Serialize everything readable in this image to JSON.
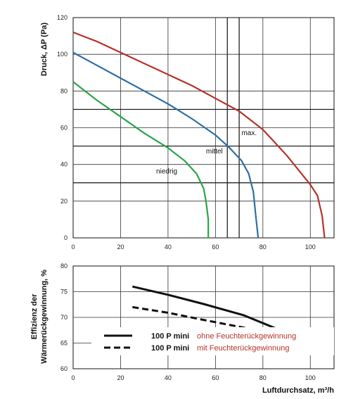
{
  "chart_data": [
    {
      "type": "line",
      "ylabel": "Druck, ΔP (Pa)",
      "xlim": [
        0,
        110
      ],
      "ylim": [
        0,
        120
      ],
      "xticks": [
        "0",
        "20",
        "40",
        "60",
        "80",
        "100"
      ],
      "yticks": [
        "0",
        "20",
        "40",
        "60",
        "80",
        "100",
        "120"
      ],
      "grid": true,
      "series": [
        {
          "name": "max.",
          "color": "#b5332a",
          "points": [
            [
              0,
              112
            ],
            [
              10,
              107
            ],
            [
              20,
              101
            ],
            [
              30,
              95
            ],
            [
              40,
              89
            ],
            [
              50,
              83
            ],
            [
              60,
              76
            ],
            [
              70,
              69
            ],
            [
              80,
              59
            ],
            [
              90,
              45
            ],
            [
              100,
              29
            ],
            [
              103,
              23
            ],
            [
              105,
              12
            ],
            [
              106,
              0
            ]
          ]
        },
        {
          "name": "mittel",
          "color": "#2e6fa5",
          "points": [
            [
              0,
              101
            ],
            [
              10,
              94
            ],
            [
              20,
              87
            ],
            [
              30,
              80
            ],
            [
              40,
              73
            ],
            [
              50,
              65
            ],
            [
              60,
              56
            ],
            [
              66,
              49
            ],
            [
              71,
              42
            ],
            [
              74,
              35
            ],
            [
              76,
              25
            ],
            [
              77,
              12
            ],
            [
              78,
              0
            ]
          ]
        },
        {
          "name": "niedrig",
          "color": "#2aa44a",
          "points": [
            [
              0,
              85
            ],
            [
              10,
              75
            ],
            [
              20,
              66
            ],
            [
              30,
              57
            ],
            [
              40,
              49
            ],
            [
              47,
              42
            ],
            [
              52,
              35
            ],
            [
              55,
              27
            ],
            [
              56,
              20
            ],
            [
              57,
              10
            ],
            [
              57,
              0
            ]
          ]
        }
      ],
      "annotations": [
        {
          "text": "max.",
          "x": 71,
          "y": 56
        },
        {
          "text": "mittel",
          "x": 56,
          "y": 46
        },
        {
          "text": "niedrig",
          "x": 35,
          "y": 35
        }
      ]
    },
    {
      "type": "line",
      "xlabel": "Luftdurchsatz, m³/h",
      "ylabel": "Effizienz der Wärmerückgewinnung, %",
      "xlim": [
        0,
        110
      ],
      "ylim": [
        60,
        80
      ],
      "xticks": [
        "0",
        "20",
        "40",
        "60",
        "80",
        "100"
      ],
      "yticks": [
        "60",
        "65",
        "70",
        "75",
        "80"
      ],
      "series": [
        {
          "name": "100 P mini ohne Feuchterückgewinnung",
          "style": "solid",
          "color": "#111111",
          "points": [
            [
              25,
              76
            ],
            [
              40,
              74.4
            ],
            [
              55,
              72.6
            ],
            [
              72,
              70.4
            ],
            [
              90,
              67
            ],
            [
              106,
              64.6
            ]
          ]
        },
        {
          "name": "100 P mini mit Feuchterückgewinnung",
          "style": "dashed",
          "color": "#111111",
          "points": [
            [
              25,
              72
            ],
            [
              40,
              70.9
            ],
            [
              55,
              69.5
            ],
            [
              72,
              68
            ],
            [
              90,
              66.2
            ],
            [
              106,
              64
            ]
          ]
        }
      ],
      "legend": [
        {
          "model": "100 P mini",
          "desc": "ohne  Feuchterückgewinnung",
          "style": "solid"
        },
        {
          "model": "100 P mini",
          "desc": "mit  Feuchterückgewinnung",
          "style": "dashed"
        }
      ]
    }
  ]
}
